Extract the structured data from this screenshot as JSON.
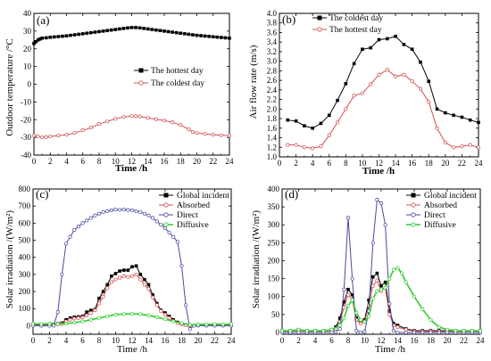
{
  "panels": [
    {
      "label": "(a)",
      "xlabel": "Time /h",
      "ylabel": "Outdoor temperature /°C",
      "legend": [
        "The hottest day",
        "The coldest day"
      ]
    },
    {
      "label": "(b)",
      "xlabel": "Time /h",
      "ylabel": "Air flow rate (m/s)",
      "legend": [
        "The coldest day",
        "The hottest day"
      ]
    },
    {
      "label": "(c)",
      "xlabel": "Time /h",
      "ylabel": "Solar irradiation /(W/m²)",
      "legend": [
        "Global incident",
        "Absorbed",
        "Direct",
        "Diffusive"
      ]
    },
    {
      "label": "(d)",
      "xlabel": "Time /h",
      "ylabel": "Solar irradiation /(W/m²)",
      "legend": [
        "Global incident",
        "Absorbed",
        "Direct",
        "Diffusive"
      ]
    }
  ],
  "colors": {
    "black": "#000000",
    "red": "#d05050",
    "blue": "#4a4aa0",
    "green": "#33cc33"
  },
  "chart_data": [
    {
      "type": "line",
      "xlim": [
        0,
        24
      ],
      "ylim": [
        -40,
        40
      ],
      "xticks": [
        0,
        2,
        4,
        6,
        8,
        10,
        12,
        14,
        16,
        18,
        20,
        22,
        24
      ],
      "yticks": [
        -40,
        -30,
        -20,
        -10,
        0,
        10,
        20,
        30,
        40
      ],
      "series": [
        {
          "name": "The hottest day",
          "color": "black",
          "marker": "square",
          "x": [
            0,
            0.25,
            0.5,
            0.75,
            1,
            1.5,
            2,
            2.5,
            3,
            3.5,
            4,
            4.5,
            5,
            5.5,
            6,
            6.5,
            7,
            7.5,
            8,
            8.5,
            9,
            9.5,
            10,
            10.5,
            11,
            11.5,
            12,
            12.5,
            13,
            13.5,
            14,
            14.5,
            15,
            15.5,
            16,
            16.5,
            17,
            17.5,
            18,
            18.5,
            19,
            19.5,
            20,
            20.5,
            21,
            21.5,
            22,
            22.5,
            23,
            23.5,
            24
          ],
          "y": [
            23,
            24,
            25,
            25.5,
            26,
            26.2,
            26.5,
            26.7,
            26.9,
            27.1,
            27.3,
            27.6,
            27.9,
            28.2,
            28.5,
            28.8,
            29.1,
            29.4,
            29.7,
            30,
            30.3,
            30.6,
            30.9,
            31.2,
            31.5,
            31.8,
            32,
            32,
            31.8,
            31.5,
            31.2,
            30.9,
            30.6,
            30.3,
            30,
            29.7,
            29.4,
            29.1,
            28.8,
            28.5,
            28.2,
            27.9,
            27.6,
            27.4,
            27.2,
            27,
            26.8,
            26.6,
            26.4,
            26.2,
            26
          ]
        },
        {
          "name": "The coldest day",
          "color": "red",
          "marker": "circle",
          "x": [
            0,
            0.5,
            1,
            1.5,
            2,
            3,
            4,
            5,
            6,
            7,
            8,
            9,
            10,
            11,
            12,
            12.5,
            13,
            14,
            15,
            16,
            17,
            18,
            19,
            19.5,
            20,
            21,
            22,
            23,
            24
          ],
          "y": [
            -29,
            -29.5,
            -30,
            -29.8,
            -29.5,
            -29,
            -28.5,
            -27.5,
            -26,
            -24.5,
            -22.5,
            -21,
            -19.5,
            -18.5,
            -18,
            -18,
            -18.2,
            -19,
            -19.8,
            -20.5,
            -21.5,
            -23,
            -25.5,
            -27,
            -27.5,
            -28,
            -28.5,
            -28.8,
            -29
          ]
        }
      ]
    },
    {
      "type": "line",
      "xlim": [
        0,
        24
      ],
      "ylim": [
        1.0,
        4.0
      ],
      "xticks": [
        0,
        2,
        4,
        6,
        8,
        10,
        12,
        14,
        16,
        18,
        20,
        22,
        24
      ],
      "yticks": [
        1.0,
        1.2,
        1.4,
        1.6,
        1.8,
        2.0,
        2.2,
        2.4,
        2.6,
        2.8,
        3.0,
        3.2,
        3.4,
        3.6,
        3.8,
        4.0
      ],
      "series": [
        {
          "name": "The coldest day",
          "color": "black",
          "marker": "square",
          "x": [
            1,
            2,
            3,
            4,
            5,
            6,
            7,
            8,
            9,
            10,
            11,
            12,
            13,
            14,
            15,
            16,
            17,
            18,
            19,
            20,
            21,
            22,
            23,
            24
          ],
          "y": [
            1.77,
            1.75,
            1.65,
            1.6,
            1.7,
            1.87,
            2.18,
            2.53,
            2.95,
            3.25,
            3.28,
            3.45,
            3.47,
            3.52,
            3.35,
            3.25,
            2.98,
            2.58,
            2.0,
            1.92,
            1.87,
            1.83,
            1.77,
            1.72
          ]
        },
        {
          "name": "The hottest day",
          "color": "red",
          "marker": "circle",
          "x": [
            1,
            2,
            3,
            4,
            5,
            6,
            7,
            8,
            9,
            10,
            11,
            12,
            13,
            14,
            15,
            16,
            17,
            18,
            19,
            20,
            21,
            22,
            23,
            24
          ],
          "y": [
            1.25,
            1.25,
            1.2,
            1.18,
            1.22,
            1.45,
            1.72,
            2.0,
            2.28,
            2.33,
            2.52,
            2.72,
            2.82,
            2.68,
            2.72,
            2.58,
            2.42,
            2.15,
            1.6,
            1.3,
            1.2,
            1.22,
            1.25,
            1.2
          ]
        }
      ]
    },
    {
      "type": "line",
      "xlim": [
        0,
        24
      ],
      "ylim": [
        -50,
        800
      ],
      "xticks": [
        0,
        2,
        4,
        6,
        8,
        10,
        12,
        14,
        16,
        18,
        20,
        22,
        24
      ],
      "yticks": [
        0,
        100,
        200,
        300,
        400,
        500,
        600,
        700,
        800
      ],
      "series": [
        {
          "name": "Global incident",
          "color": "black",
          "marker": "square",
          "x": [
            0,
            1,
            2,
            2.5,
            3,
            3.5,
            4,
            4.5,
            5,
            5.5,
            6,
            6.5,
            7,
            7.5,
            8,
            8.5,
            9,
            9.5,
            10,
            10.5,
            11,
            11.5,
            12,
            12.5,
            13,
            13.5,
            14,
            14.5,
            15,
            15.5,
            16,
            16.5,
            17,
            17.5,
            18,
            18.5,
            19,
            20,
            21,
            22,
            23,
            24
          ],
          "y": [
            8,
            5,
            10,
            8,
            12,
            15,
            35,
            45,
            50,
            52,
            55,
            80,
            90,
            95,
            160,
            200,
            240,
            290,
            305,
            320,
            325,
            325,
            345,
            350,
            300,
            270,
            240,
            180,
            130,
            90,
            75,
            55,
            35,
            20,
            10,
            5,
            0,
            5,
            3,
            5,
            3,
            5
          ]
        },
        {
          "name": "Absorbed",
          "color": "red",
          "marker": "circle",
          "x": [
            0,
            1,
            2,
            2.5,
            3,
            3.5,
            4,
            4.5,
            5,
            5.5,
            6,
            6.5,
            7,
            7.5,
            8,
            8.5,
            9,
            9.5,
            10,
            10.5,
            11,
            11.5,
            12,
            12.5,
            13,
            13.5,
            14,
            14.5,
            15,
            15.5,
            16,
            16.5,
            17,
            17.5,
            18,
            18.5,
            19,
            20,
            21,
            22,
            23,
            24
          ],
          "y": [
            5,
            3,
            5,
            5,
            8,
            10,
            25,
            35,
            42,
            45,
            48,
            60,
            75,
            90,
            130,
            170,
            220,
            255,
            270,
            280,
            290,
            285,
            290,
            300,
            270,
            240,
            215,
            165,
            120,
            85,
            65,
            45,
            28,
            15,
            8,
            3,
            0,
            3,
            2,
            3,
            2,
            3
          ]
        },
        {
          "name": "Direct",
          "color": "blue",
          "marker": "circle",
          "x": [
            0,
            1,
            2,
            2.5,
            3,
            3.5,
            4,
            4.5,
            5,
            5.5,
            6,
            6.5,
            7,
            7.5,
            8,
            8.5,
            9,
            9.5,
            10,
            10.5,
            11,
            11.5,
            12,
            12.5,
            13,
            13.5,
            14,
            14.5,
            15,
            15.5,
            16,
            16.5,
            17,
            17.5,
            18,
            18.5,
            19,
            19.5,
            20,
            21,
            22,
            23,
            24
          ],
          "y": [
            0,
            0,
            0,
            0,
            80,
            300,
            480,
            520,
            560,
            580,
            600,
            615,
            630,
            645,
            655,
            665,
            670,
            675,
            680,
            678,
            680,
            677,
            675,
            670,
            665,
            655,
            645,
            630,
            610,
            590,
            570,
            545,
            520,
            490,
            350,
            120,
            -20,
            0,
            0,
            0,
            0,
            0,
            0
          ]
        },
        {
          "name": "Diffusive",
          "color": "green",
          "marker": "circle",
          "x": [
            0,
            1,
            2,
            3,
            4,
            5,
            6,
            7,
            8,
            9,
            10,
            11,
            12,
            13,
            14,
            15,
            16,
            17,
            18,
            19,
            20,
            21,
            22,
            23,
            24
          ],
          "y": [
            12,
            10,
            12,
            10,
            12,
            18,
            25,
            35,
            45,
            55,
            65,
            68,
            70,
            68,
            60,
            50,
            38,
            25,
            15,
            5,
            8,
            8,
            10,
            8,
            10
          ]
        }
      ]
    },
    {
      "type": "line",
      "xlim": [
        0,
        24
      ],
      "ylim": [
        -5,
        400
      ],
      "xticks": [
        0,
        2,
        4,
        6,
        8,
        10,
        12,
        14,
        16,
        18,
        20,
        22,
        24
      ],
      "yticks": [
        0,
        50,
        100,
        150,
        200,
        250,
        300,
        350,
        400
      ],
      "series": [
        {
          "name": "Global incident",
          "color": "black",
          "marker": "square",
          "x": [
            0,
            1,
            2,
            3,
            4,
            5,
            6,
            6.5,
            7,
            7.5,
            8,
            8.5,
            9,
            9.5,
            10,
            10.5,
            11,
            11.5,
            12,
            12.5,
            13,
            13.5,
            14,
            15,
            16,
            17,
            18,
            19,
            20,
            21,
            22,
            23,
            24
          ],
          "y": [
            5,
            5,
            8,
            5,
            5,
            5,
            8,
            15,
            40,
            85,
            120,
            105,
            40,
            30,
            35,
            90,
            155,
            165,
            130,
            140,
            60,
            25,
            20,
            10,
            5,
            5,
            5,
            5,
            5,
            5,
            5,
            5,
            5
          ]
        },
        {
          "name": "Absorbed",
          "color": "red",
          "marker": "circle",
          "x": [
            0,
            1,
            2,
            3,
            4,
            5,
            6,
            6.5,
            7,
            7.5,
            8,
            8.5,
            9,
            9.5,
            10,
            10.5,
            11,
            11.5,
            12,
            12.5,
            13,
            13.5,
            14,
            15,
            16,
            17,
            18,
            19,
            20,
            21,
            22,
            23,
            24
          ],
          "y": [
            3,
            3,
            5,
            3,
            3,
            3,
            5,
            10,
            30,
            70,
            105,
            90,
            35,
            25,
            30,
            75,
            130,
            145,
            115,
            125,
            50,
            20,
            15,
            8,
            3,
            3,
            3,
            3,
            3,
            3,
            3,
            3,
            3
          ]
        },
        {
          "name": "Direct",
          "color": "blue",
          "marker": "circle",
          "x": [
            0,
            1,
            2,
            3,
            4,
            5,
            6,
            6.5,
            7,
            7.5,
            8,
            8.5,
            9,
            9.5,
            10,
            10.5,
            11,
            11.5,
            12,
            12.5,
            13,
            13.5,
            14,
            15,
            16,
            17,
            18,
            19,
            20,
            21,
            22,
            23,
            24
          ],
          "y": [
            0,
            0,
            0,
            0,
            0,
            0,
            0,
            2,
            10,
            120,
            320,
            150,
            5,
            0,
            2,
            60,
            250,
            370,
            360,
            300,
            80,
            5,
            0,
            0,
            0,
            0,
            0,
            0,
            0,
            0,
            0,
            0,
            0
          ]
        },
        {
          "name": "Diffusive",
          "color": "green",
          "marker": "circle",
          "x": [
            0,
            1,
            2,
            3,
            4,
            5,
            6,
            7,
            7.5,
            8,
            8.5,
            9,
            9.5,
            10,
            10.5,
            11,
            11.5,
            12,
            12.5,
            13,
            13.5,
            14,
            14.5,
            15,
            16,
            17,
            18,
            19,
            20,
            21,
            22,
            23,
            24
          ],
          "y": [
            5,
            5,
            8,
            5,
            5,
            5,
            8,
            20,
            40,
            75,
            90,
            55,
            35,
            30,
            45,
            95,
            115,
            120,
            125,
            150,
            175,
            180,
            165,
            140,
            100,
            65,
            35,
            15,
            8,
            5,
            5,
            5,
            5
          ]
        }
      ]
    }
  ]
}
